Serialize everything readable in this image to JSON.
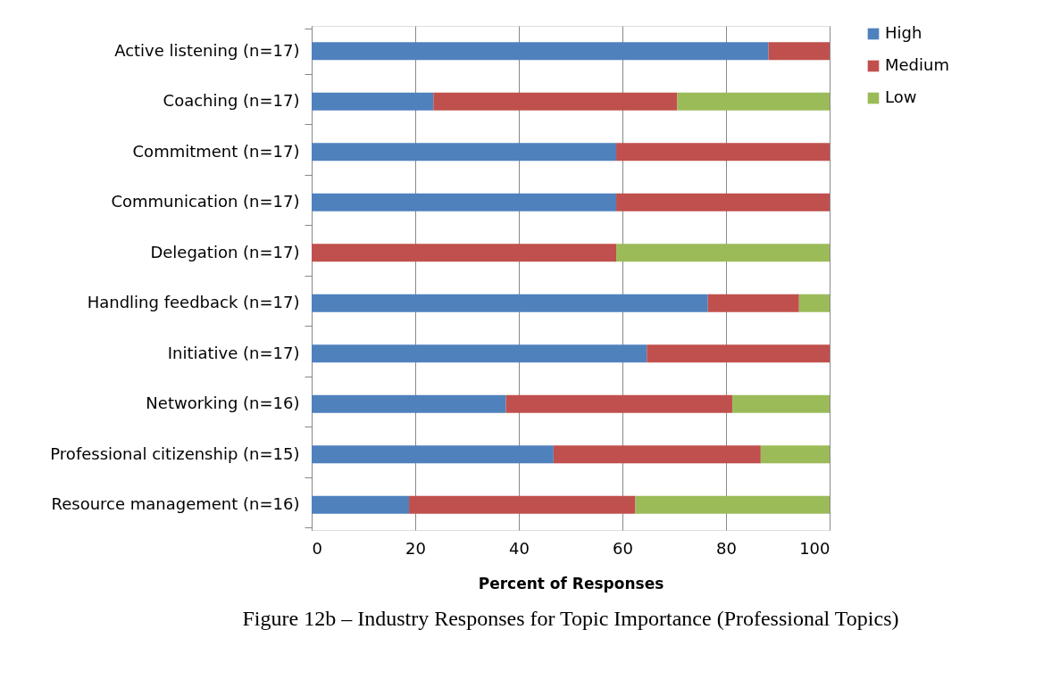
{
  "chart_data": {
    "type": "bar",
    "orientation": "horizontal",
    "stacked": true,
    "categories": [
      "Active listening (n=17)",
      "Coaching (n=17)",
      "Commitment  (n=17)",
      "Communication  (n=17)",
      "Delegation (n=17)",
      "Handling feedback (n=17)",
      "Initiative  (n=17)",
      "Networking (n=16)",
      "Professional citizenship  (n=15)",
      "Resource management  (n=16)"
    ],
    "series": [
      {
        "name": "High",
        "color": "#4f81bd",
        "values": [
          88.2,
          23.5,
          58.8,
          58.8,
          0,
          76.5,
          64.7,
          37.5,
          46.7,
          18.8
        ]
      },
      {
        "name": "Medium",
        "color": "#c0504d",
        "values": [
          11.8,
          47.1,
          41.2,
          41.2,
          58.8,
          17.6,
          35.3,
          43.7,
          40.0,
          43.7
        ]
      },
      {
        "name": "Low",
        "color": "#9bbb59",
        "values": [
          0,
          29.4,
          0,
          0,
          41.2,
          5.9,
          0,
          18.8,
          13.3,
          37.5
        ]
      }
    ],
    "xlabel": "Percent of Responses",
    "xlim": [
      0,
      100
    ],
    "xticks": [
      0,
      20,
      40,
      60,
      80,
      100
    ],
    "grid": "x",
    "legend": "right",
    "annotations": [
      "Figure 12b – Industry Responses for Topic Importance (Professional Topics)"
    ]
  }
}
